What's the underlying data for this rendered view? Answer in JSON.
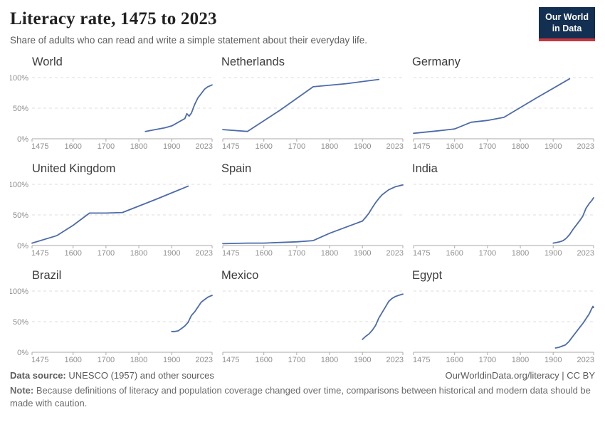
{
  "header": {
    "title": "Literacy rate, 1475 to 2023",
    "subtitle": "Share of adults who can read and write a simple statement about their everyday life.",
    "logo": {
      "line1": "Our World",
      "line2": "in Data",
      "bg_color": "#132f52",
      "accent_color": "#c9353d"
    }
  },
  "chart_config": {
    "line_color": "#4c6ba9",
    "grid_color": "#dcdcdc",
    "axis_color": "#a9a9a9",
    "tick_label_color": "#8f8f8f",
    "facet_title_color": "#3d3d3d",
    "x_domain": [
      1475,
      2023
    ],
    "x_ticks": [
      1475,
      1600,
      1700,
      1800,
      1900,
      2023
    ],
    "y_domain": [
      0,
      100
    ],
    "y_ticks": [
      0,
      50,
      100
    ],
    "y_tick_labels": [
      "0%",
      "50%",
      "100%"
    ],
    "grid": "dashed horizontal at 50% and 100%",
    "legend_position": "none"
  },
  "chart_data": [
    {
      "type": "line",
      "title": "World",
      "show_y_axis_labels": true,
      "points": [
        [
          1820,
          12
        ],
        [
          1840,
          14
        ],
        [
          1860,
          16
        ],
        [
          1880,
          18
        ],
        [
          1900,
          21
        ],
        [
          1910,
          24
        ],
        [
          1920,
          27
        ],
        [
          1930,
          30
        ],
        [
          1940,
          33
        ],
        [
          1946,
          41
        ],
        [
          1953,
          37
        ],
        [
          1960,
          42
        ],
        [
          1970,
          56
        ],
        [
          1980,
          67
        ],
        [
          1990,
          74
        ],
        [
          2000,
          81
        ],
        [
          2010,
          85
        ],
        [
          2023,
          88
        ]
      ]
    },
    {
      "type": "line",
      "title": "Netherlands",
      "show_y_axis_labels": false,
      "points": [
        [
          1475,
          15
        ],
        [
          1550,
          12
        ],
        [
          1650,
          47
        ],
        [
          1750,
          85
        ],
        [
          1850,
          90
        ],
        [
          1950,
          97
        ]
      ]
    },
    {
      "type": "line",
      "title": "Germany",
      "show_y_axis_labels": false,
      "points": [
        [
          1475,
          9
        ],
        [
          1550,
          13
        ],
        [
          1600,
          16
        ],
        [
          1650,
          27
        ],
        [
          1700,
          30
        ],
        [
          1750,
          35
        ],
        [
          1850,
          67
        ],
        [
          1950,
          98
        ]
      ]
    },
    {
      "type": "line",
      "title": "United Kingdom",
      "show_y_axis_labels": true,
      "points": [
        [
          1475,
          4
        ],
        [
          1550,
          16
        ],
        [
          1600,
          33
        ],
        [
          1650,
          53
        ],
        [
          1700,
          53
        ],
        [
          1750,
          54
        ],
        [
          1850,
          75
        ],
        [
          1950,
          97
        ]
      ]
    },
    {
      "type": "line",
      "title": "Spain",
      "show_y_axis_labels": false,
      "points": [
        [
          1475,
          3
        ],
        [
          1550,
          4
        ],
        [
          1600,
          4
        ],
        [
          1650,
          5
        ],
        [
          1700,
          6
        ],
        [
          1750,
          8
        ],
        [
          1800,
          20
        ],
        [
          1850,
          30
        ],
        [
          1900,
          40
        ],
        [
          1910,
          46
        ],
        [
          1920,
          53
        ],
        [
          1930,
          62
        ],
        [
          1940,
          70
        ],
        [
          1950,
          77
        ],
        [
          1960,
          83
        ],
        [
          1980,
          91
        ],
        [
          2000,
          96
        ],
        [
          2023,
          99
        ]
      ]
    },
    {
      "type": "line",
      "title": "India",
      "show_y_axis_labels": false,
      "points": [
        [
          1900,
          4
        ],
        [
          1910,
          5
        ],
        [
          1920,
          6
        ],
        [
          1930,
          8
        ],
        [
          1940,
          12
        ],
        [
          1950,
          18
        ],
        [
          1960,
          26
        ],
        [
          1970,
          33
        ],
        [
          1980,
          40
        ],
        [
          1990,
          48
        ],
        [
          2000,
          61
        ],
        [
          2010,
          69
        ],
        [
          2018,
          74
        ],
        [
          2023,
          78
        ]
      ]
    },
    {
      "type": "line",
      "title": "Brazil",
      "show_y_axis_labels": true,
      "points": [
        [
          1900,
          34
        ],
        [
          1910,
          34
        ],
        [
          1920,
          35
        ],
        [
          1930,
          39
        ],
        [
          1940,
          43
        ],
        [
          1950,
          49
        ],
        [
          1960,
          60
        ],
        [
          1970,
          66
        ],
        [
          1980,
          74
        ],
        [
          1990,
          82
        ],
        [
          2000,
          86
        ],
        [
          2010,
          90
        ],
        [
          2023,
          93
        ]
      ]
    },
    {
      "type": "line",
      "title": "Mexico",
      "show_y_axis_labels": false,
      "points": [
        [
          1900,
          21
        ],
        [
          1910,
          26
        ],
        [
          1920,
          30
        ],
        [
          1930,
          36
        ],
        [
          1940,
          44
        ],
        [
          1950,
          56
        ],
        [
          1960,
          65
        ],
        [
          1970,
          74
        ],
        [
          1980,
          83
        ],
        [
          1990,
          88
        ],
        [
          2000,
          91
        ],
        [
          2010,
          93
        ],
        [
          2023,
          95
        ]
      ]
    },
    {
      "type": "line",
      "title": "Egypt",
      "show_y_axis_labels": false,
      "points": [
        [
          1907,
          7
        ],
        [
          1917,
          8
        ],
        [
          1927,
          10
        ],
        [
          1937,
          12
        ],
        [
          1947,
          17
        ],
        [
          1960,
          26
        ],
        [
          1970,
          33
        ],
        [
          1980,
          40
        ],
        [
          1990,
          47
        ],
        [
          2000,
          55
        ],
        [
          2010,
          63
        ],
        [
          2017,
          71
        ],
        [
          2021,
          75
        ],
        [
          2023,
          73
        ]
      ]
    }
  ],
  "footer": {
    "datasource_label": "Data source:",
    "datasource_text": "UNESCO (1957) and other sources",
    "attribution": "OurWorldinData.org/literacy | CC BY",
    "note_label": "Note:",
    "note_text": "Because definitions of literacy and population coverage changed over time, comparisons between historical and modern data should be made with caution."
  }
}
